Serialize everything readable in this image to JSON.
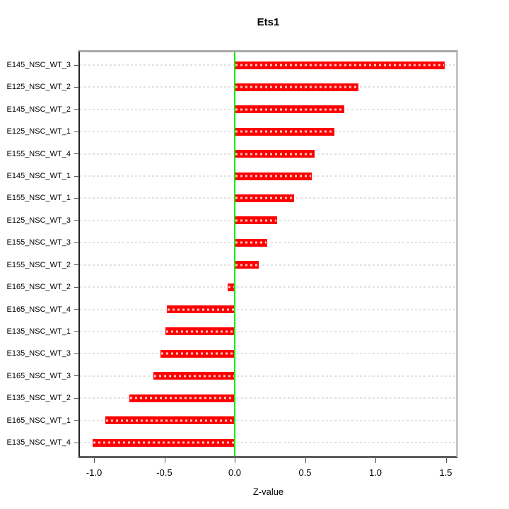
{
  "chart_data": {
    "type": "bar",
    "orientation": "horizontal",
    "title": "Ets1",
    "xlabel": "Z-value",
    "ylabel": "",
    "legend": "none",
    "grid": "dotted horizontal line per category",
    "categories": [
      "E145_NSC_WT_3",
      "E125_NSC_WT_2",
      "E145_NSC_WT_2",
      "E125_NSC_WT_1",
      "E155_NSC_WT_4",
      "E145_NSC_WT_1",
      "E155_NSC_WT_1",
      "E125_NSC_WT_3",
      "E155_NSC_WT_3",
      "E155_NSC_WT_2",
      "E165_NSC_WT_2",
      "E165_NSC_WT_4",
      "E135_NSC_WT_1",
      "E135_NSC_WT_3",
      "E165_NSC_WT_3",
      "E135_NSC_WT_2",
      "E165_NSC_WT_1",
      "E135_NSC_WT_4"
    ],
    "values": [
      1.49,
      0.88,
      0.78,
      0.71,
      0.57,
      0.55,
      0.42,
      0.3,
      0.23,
      0.17,
      -0.05,
      -0.48,
      -0.49,
      -0.53,
      -0.58,
      -0.75,
      -0.92,
      -1.01
    ],
    "xlim": [
      -1.11,
      1.59
    ],
    "xticks": [
      -1.0,
      -0.5,
      0.0,
      0.5,
      1.0,
      1.5
    ],
    "xtick_labels": [
      "-1.0",
      "-0.5",
      "0.0",
      "0.5",
      "1.0",
      "1.5"
    ],
    "zero_line_x": 0.0,
    "colors": {
      "bar": "#ff0000",
      "bar_inner_dash": "rgba(255,255,255,0.78)",
      "zero_line": "#00ee00",
      "grid_line": "#e2e2e2",
      "box_top": "#a8a8a8",
      "box_right": "#c6c6c6",
      "box_bottom": "#5e5e5e",
      "box_left": "#222222",
      "tick": "#555555",
      "text": "#000000",
      "background": "#ffffff"
    }
  }
}
